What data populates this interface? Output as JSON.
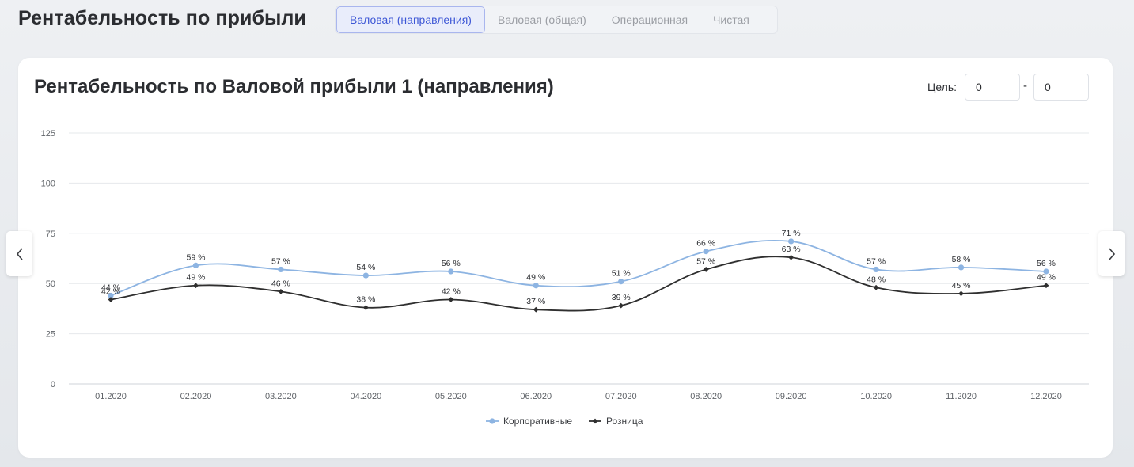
{
  "header": {
    "title": "Рентабельность по прибыли",
    "tabs": [
      {
        "label": "Валовая (направления)",
        "active": true
      },
      {
        "label": "Валовая (общая)",
        "active": false
      },
      {
        "label": "Операционная",
        "active": false
      },
      {
        "label": "Чистая",
        "active": false
      }
    ]
  },
  "card": {
    "title": "Рентабельность по Валовой прибыли 1 (направления)",
    "goal": {
      "label": "Цель:",
      "min_value": "0",
      "max_value": "0",
      "separator": "-"
    }
  },
  "nav": {
    "prev_icon": "chevron-left-icon",
    "next_icon": "chevron-right-icon"
  },
  "colors": {
    "corporate": "#8db4e2",
    "retail": "#2f2f2f",
    "grid": "#e6e8eb",
    "accent": "#3d57d6"
  },
  "chart_data": {
    "type": "line",
    "categories": [
      "01.2020",
      "02.2020",
      "03.2020",
      "04.2020",
      "05.2020",
      "06.2020",
      "07.2020",
      "08.2020",
      "09.2020",
      "10.2020",
      "11.2020",
      "12.2020"
    ],
    "y_ticks": [
      0,
      25,
      50,
      75,
      100,
      125
    ],
    "ylim": [
      0,
      125
    ],
    "value_suffix": " %",
    "grid": true,
    "legend_position": "bottom-center",
    "series": [
      {
        "name": "Корпоративные",
        "marker": "circle",
        "color": "#8db4e2",
        "values": [
          44,
          59,
          57,
          54,
          56,
          49,
          51,
          66,
          71,
          57,
          58,
          56
        ]
      },
      {
        "name": "Розница",
        "marker": "diamond",
        "color": "#2f2f2f",
        "values": [
          42,
          49,
          46,
          38,
          42,
          37,
          39,
          57,
          63,
          48,
          45,
          49
        ]
      }
    ]
  }
}
